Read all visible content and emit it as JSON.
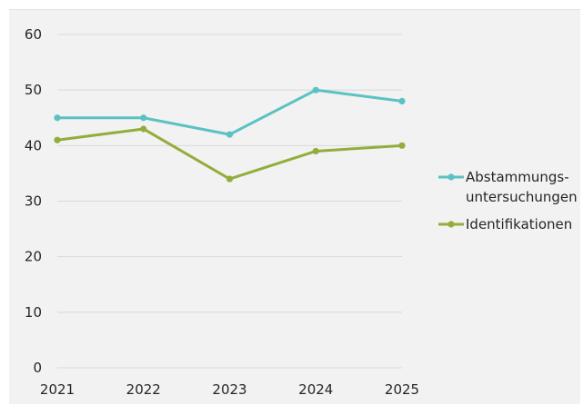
{
  "chart_data": {
    "type": "line",
    "title": "",
    "xlabel": "",
    "ylabel": "",
    "categories": [
      "2021",
      "2022",
      "2023",
      "2024",
      "2025"
    ],
    "ylim": [
      0,
      60
    ],
    "yticks": [
      "0",
      "10",
      "20",
      "30",
      "40",
      "50",
      "60"
    ],
    "grid": true,
    "legend_position": "right",
    "series": [
      {
        "name_lines": [
          "Abstammungs-",
          "untersuchungen"
        ],
        "color": "#5bc2c2",
        "values": [
          45,
          45,
          42,
          50,
          48
        ]
      },
      {
        "name_lines": [
          "Identifikationen"
        ],
        "color": "#93ad3c",
        "values": [
          41,
          43,
          34,
          39,
          40
        ]
      }
    ]
  }
}
